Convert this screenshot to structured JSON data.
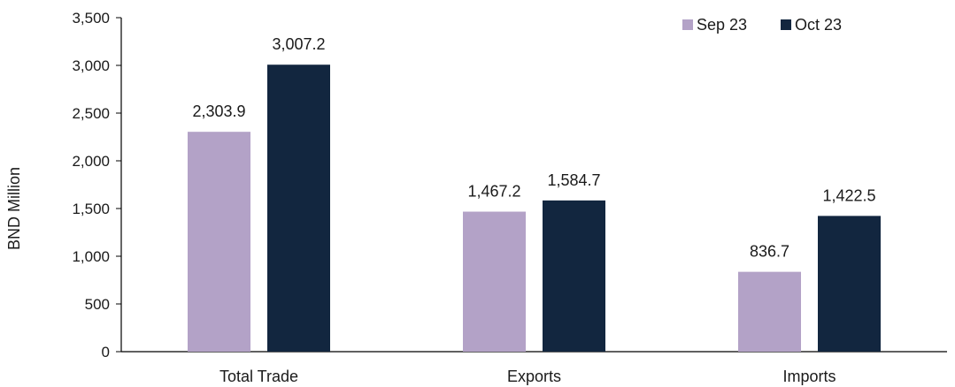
{
  "chart_data": {
    "type": "bar",
    "title": "",
    "xlabel": "",
    "ylabel": "BND Million",
    "ylim": [
      0,
      3500
    ],
    "yticks": [
      0,
      500,
      1000,
      1500,
      2000,
      2500,
      3000,
      3500
    ],
    "ytick_labels": [
      "0",
      "500",
      "1,000",
      "1,500",
      "2,000",
      "2,500",
      "3,000",
      "3,500"
    ],
    "categories": [
      "Total Trade",
      "Exports",
      "Imports"
    ],
    "series": [
      {
        "name": "Sep 23",
        "color": "#b3a2c7",
        "values": [
          2303.9,
          1467.2,
          836.7
        ],
        "labels": [
          "2,303.9",
          "1,467.2",
          "836.7"
        ]
      },
      {
        "name": "Oct 23",
        "color": "#12263f",
        "values": [
          3007.2,
          1584.7,
          1422.5
        ],
        "labels": [
          "3,007.2",
          "1,584.7",
          "1,422.5"
        ]
      }
    ],
    "legend_position": "top-right",
    "grid": false
  }
}
